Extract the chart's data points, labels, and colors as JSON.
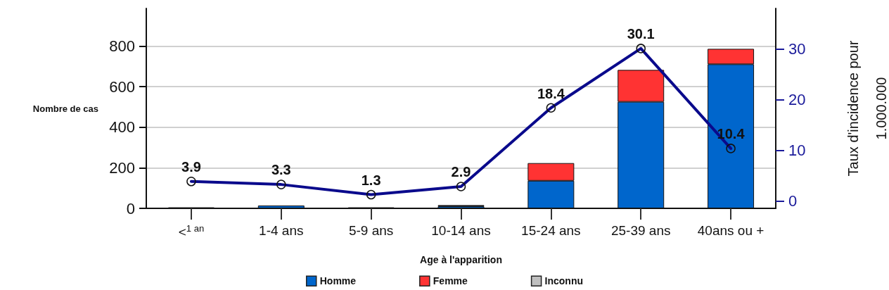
{
  "chart_data": {
    "type": "bar",
    "stacked": true,
    "xlabel": "Age à l'apparition",
    "ylabel": "Nombre de cas",
    "y2label": "Taux d'incidence pour\n1.000.000",
    "categories": [
      "<$^{1 an}$",
      "1-4 ans",
      "5-9 ans",
      "10-14 ans",
      "15-24 ans",
      "25-39 ans",
      "40ans ou +"
    ],
    "series": [
      {
        "name": "Homme",
        "color": "#0066cc",
        "values": [
          5,
          14,
          5,
          10,
          136,
          525,
          710
        ]
      },
      {
        "name": "Femme",
        "color": "#ff3333",
        "values": [
          0,
          0,
          0,
          6,
          87,
          157,
          76
        ]
      },
      {
        "name": "Inconnu",
        "color": "#bfbfbf",
        "values": [
          0,
          0,
          0,
          0,
          0,
          0,
          0
        ]
      },
      {
        "type": "line",
        "axis": "y2",
        "color": "#0a0a8c",
        "marker": "circle",
        "data_labels": true,
        "values": [
          3.9,
          3.3,
          1.3,
          2.9,
          18.4,
          30.1,
          10.4
        ]
      }
    ],
    "ylim": [
      0,
      985
    ],
    "yticks": [
      0,
      200,
      400,
      600,
      800
    ],
    "y2lim": [
      -1.4,
      38
    ],
    "y2ticks": [
      0,
      10,
      20,
      30
    ],
    "grid": "y",
    "legend": "bottom"
  }
}
